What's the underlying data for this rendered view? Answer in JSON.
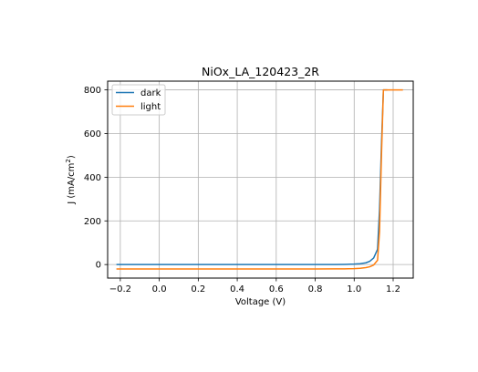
{
  "chart_data": {
    "type": "line",
    "title": "NiOx_LA_120423_2R",
    "xlabel": "Voltage (V)",
    "ylabel_main": "J (mA/cm",
    "ylabel_sup": "2",
    "ylabel_tail": ")",
    "xlim": [
      -0.265,
      1.303
    ],
    "ylim": [
      -62,
      840
    ],
    "xticks": [
      -0.2,
      0.0,
      0.2,
      0.4,
      0.6,
      0.8,
      1.0,
      1.2
    ],
    "xtick_labels": [
      "−0.2",
      "0.0",
      "0.2",
      "0.4",
      "0.6",
      "0.8",
      "1.0",
      "1.2"
    ],
    "yticks": [
      0,
      200,
      400,
      600,
      800
    ],
    "ytick_labels": [
      "0",
      "200",
      "400",
      "600",
      "800"
    ],
    "grid": true,
    "legend_position": "top-left",
    "series": [
      {
        "name": "dark",
        "color": "#1f77b4",
        "x": [
          -0.22,
          0.0,
          0.2,
          0.4,
          0.6,
          0.8,
          0.9,
          0.95,
          1.0,
          1.03,
          1.06,
          1.08,
          1.1,
          1.12,
          1.13,
          1.14,
          1.15,
          1.17
        ],
        "y": [
          0,
          0,
          0,
          0,
          0,
          0,
          0.2,
          0.8,
          2,
          4,
          8,
          15,
          30,
          70,
          250,
          550,
          800,
          800
        ]
      },
      {
        "name": "light",
        "color": "#ff7f0e",
        "x": [
          -0.22,
          0.0,
          0.2,
          0.4,
          0.6,
          0.8,
          0.9,
          0.95,
          1.0,
          1.03,
          1.06,
          1.08,
          1.1,
          1.12,
          1.13,
          1.14,
          1.15,
          1.2,
          1.25
        ],
        "y": [
          -20,
          -20,
          -20,
          -20,
          -20,
          -20,
          -19.8,
          -19.5,
          -18.5,
          -17,
          -14,
          -10,
          -2,
          20,
          150,
          500,
          800,
          800,
          800
        ]
      }
    ]
  }
}
